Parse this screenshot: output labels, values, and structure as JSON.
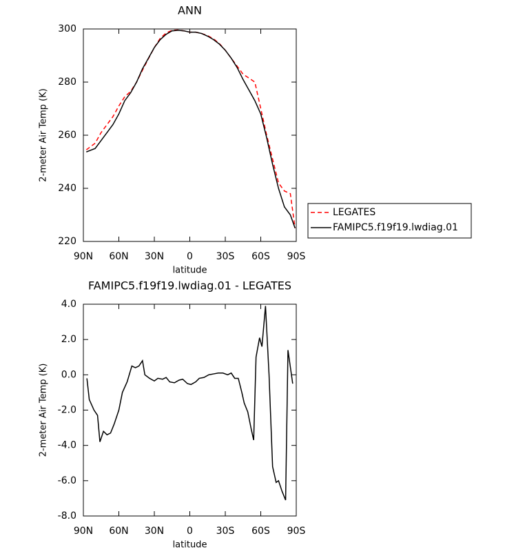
{
  "chart_data": [
    {
      "type": "line",
      "title": "ANN",
      "xlabel": "latitude",
      "ylabel": "2-meter Air Temp (K)",
      "x": [
        87.5,
        80,
        75,
        70,
        65,
        60,
        55,
        50,
        45,
        40,
        35,
        30,
        25,
        20,
        15,
        10,
        5,
        0,
        -5,
        -10,
        -15,
        -20,
        -25,
        -30,
        -35,
        -40,
        -45,
        -50,
        -55,
        -60,
        -65,
        -70,
        -75,
        -80,
        -85,
        -89
      ],
      "xlim": [
        90,
        -90
      ],
      "xticks": [
        {
          "value": 90,
          "label": "90N"
        },
        {
          "value": 60,
          "label": "60N"
        },
        {
          "value": 30,
          "label": "30N"
        },
        0,
        {
          "value": -30,
          "label": "30S"
        },
        {
          "value": -60,
          "label": "60S"
        },
        {
          "value": -90,
          "label": "90S"
        }
      ],
      "ylim": [
        220,
        300
      ],
      "yticks": [
        220,
        240,
        260,
        280,
        300
      ],
      "legend": "outside right",
      "series": [
        {
          "name": "LEGATES",
          "color": "#ff0000",
          "dashed": true,
          "values": [
            254.5,
            257,
            261,
            264,
            267,
            271,
            274.5,
            276.5,
            280,
            284.5,
            288.8,
            293,
            296.5,
            298.5,
            299.5,
            299.6,
            299.3,
            298.8,
            298.8,
            298.3,
            297.5,
            296.3,
            294.5,
            292,
            289,
            286,
            283,
            281.5,
            280,
            270,
            260,
            251,
            242,
            239,
            238,
            225
          ]
        },
        {
          "name": "FAMIPC5.f19f19.lwdiag.01",
          "color": "#000000",
          "dashed": false,
          "values": [
            253.7,
            255,
            258,
            261,
            264,
            268,
            273,
            276,
            280,
            285,
            289,
            293,
            296,
            298,
            299.3,
            299.5,
            299.3,
            298.8,
            298.8,
            298.3,
            297.3,
            296,
            294.3,
            292,
            289,
            285.5,
            281,
            277,
            273,
            268,
            259,
            249,
            240,
            233,
            230,
            225
          ]
        }
      ]
    },
    {
      "type": "line",
      "title": "FAMIPC5.f19f19.lwdiag.01 - LEGATES",
      "xlabel": "latitude",
      "ylabel": "2-meter Air Temp (K)",
      "x": [
        87,
        85,
        81,
        78,
        76,
        73,
        70,
        67,
        64,
        60,
        57,
        53,
        49,
        46,
        43,
        40,
        38,
        34,
        30,
        27,
        23,
        20,
        17,
        13,
        9,
        6,
        2,
        -1,
        -5,
        -8,
        -12,
        -16,
        -20,
        -24,
        -28,
        -32,
        -35,
        -38,
        -41,
        -44,
        -46,
        -49,
        -52,
        -54,
        -56,
        -59,
        -61,
        -64,
        -67,
        -70,
        -73,
        -75,
        -78,
        -81,
        -83,
        -87
      ],
      "xlim": [
        90,
        -90
      ],
      "xticks": [
        {
          "value": 90,
          "label": "90N"
        },
        {
          "value": 60,
          "label": "60N"
        },
        {
          "value": 30,
          "label": "30N"
        },
        0,
        {
          "value": -30,
          "label": "30S"
        },
        {
          "value": -60,
          "label": "60S"
        },
        {
          "value": -90,
          "label": "90S"
        }
      ],
      "ylim": [
        -8,
        4
      ],
      "yticks": [
        {
          "value": -8,
          "label": "-8.0"
        },
        {
          "value": -6,
          "label": "-6.0"
        },
        {
          "value": -4,
          "label": "-4.0"
        },
        {
          "value": -2,
          "label": "-2.0"
        },
        {
          "value": 0,
          "label": "0.0"
        },
        {
          "value": 2,
          "label": "2.0"
        },
        {
          "value": 4,
          "label": "4.0"
        }
      ],
      "color": "#000000",
      "values": [
        -0.2,
        -1.4,
        -2.0,
        -2.3,
        -3.8,
        -3.2,
        -3.4,
        -3.3,
        -2.8,
        -2.0,
        -1.0,
        -0.4,
        0.5,
        0.4,
        0.5,
        0.8,
        0.0,
        -0.2,
        -0.35,
        -0.2,
        -0.25,
        -0.15,
        -0.4,
        -0.45,
        -0.3,
        -0.25,
        -0.5,
        -0.55,
        -0.4,
        -0.2,
        -0.15,
        0.0,
        0.05,
        0.1,
        0.1,
        0.0,
        0.1,
        -0.2,
        -0.2,
        -1.0,
        -1.6,
        -2.1,
        -3.1,
        -3.7,
        1.0,
        2.1,
        1.6,
        3.9,
        0.0,
        -5.2,
        -6.1,
        -6.0,
        -6.6,
        -7.1,
        1.4,
        -0.5
      ]
    }
  ]
}
